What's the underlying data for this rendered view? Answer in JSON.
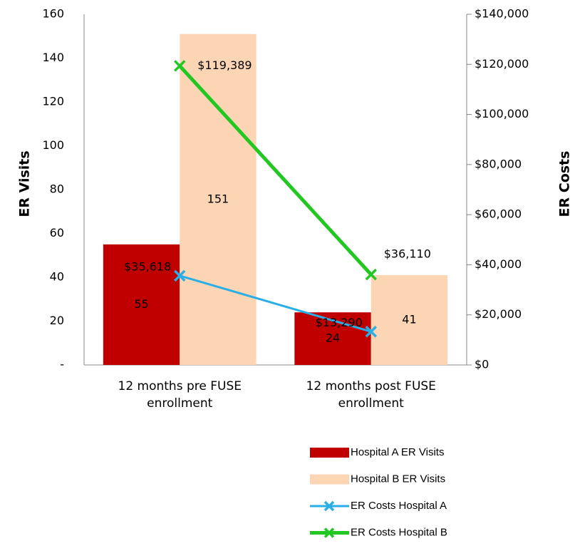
{
  "chart_data": {
    "type": "bar",
    "categories": [
      "12 months pre FUSE enrollment",
      "12 months post FUSE enrollment"
    ],
    "y_label": "ER Visits",
    "y2_label": "ER Costs",
    "ylim": [
      0,
      160
    ],
    "yticks": [
      {
        "value": 0,
        "label": "-"
      },
      20,
      40,
      60,
      80,
      100,
      120,
      140,
      160
    ],
    "y2lim": [
      0,
      140000
    ],
    "y2ticks": [
      {
        "value": 0,
        "label": "$0"
      },
      {
        "value": 20000,
        "label": "$20,000"
      },
      {
        "value": 40000,
        "label": "$40,000"
      },
      {
        "value": 60000,
        "label": "$60,000"
      },
      {
        "value": 80000,
        "label": "$80,000"
      },
      {
        "value": 100000,
        "label": "$100,000"
      },
      {
        "value": 120000,
        "label": "$120,000"
      },
      {
        "value": 140000,
        "label": "$140,000"
      }
    ],
    "legend": "bottom",
    "series": [
      {
        "name": "Hospital A ER Visits",
        "type": "bar",
        "color": "#c00000",
        "values": [
          55,
          24
        ]
      },
      {
        "name": "Hospital B ER Visits",
        "type": "bar",
        "color": "#fcd5b5",
        "values": [
          151,
          41
        ]
      },
      {
        "name": "ER Costs Hospital A",
        "type": "line",
        "axis": "y2",
        "color": "#2aaee6",
        "values": [
          35618,
          13290
        ],
        "value_labels": [
          "$35,618",
          "$13,290"
        ]
      },
      {
        "name": "ER Costs Hospital B",
        "type": "line",
        "axis": "y2",
        "color": "#22c722",
        "values": [
          119389,
          36110
        ],
        "value_labels": [
          "$119,389",
          "$36,110"
        ]
      }
    ]
  }
}
